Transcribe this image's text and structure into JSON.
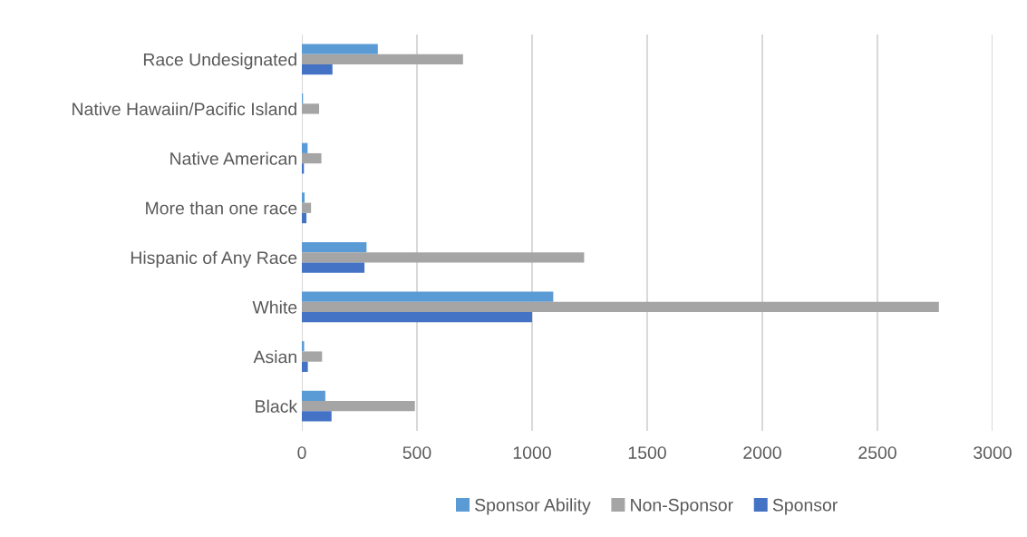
{
  "chart_data": {
    "type": "bar",
    "orientation": "horizontal",
    "categories": [
      "Race Undesignated",
      "Native Hawaiin/Pacific Island",
      "Native American",
      "More than one race",
      "Hispanic of Any Race",
      "White",
      "Asian",
      "Black"
    ],
    "series": [
      {
        "name": "Sponsor Ability",
        "color": "#5b9bd5",
        "values": [
          330,
          5,
          25,
          12,
          281,
          1092,
          10,
          102
        ]
      },
      {
        "name": "Non-Sponsor",
        "color": "#a5a5a5",
        "values": [
          700,
          75,
          85,
          40,
          1226,
          2767,
          88,
          491
        ]
      },
      {
        "name": "Sponsor",
        "color": "#4472c4",
        "values": [
          133,
          0,
          9,
          20,
          272,
          1000,
          26,
          129
        ]
      }
    ],
    "xlim": [
      0,
      3000
    ],
    "xticks": [
      0,
      500,
      1000,
      1500,
      2000,
      2500,
      3000
    ],
    "grid": "x",
    "legend": "bottom"
  }
}
